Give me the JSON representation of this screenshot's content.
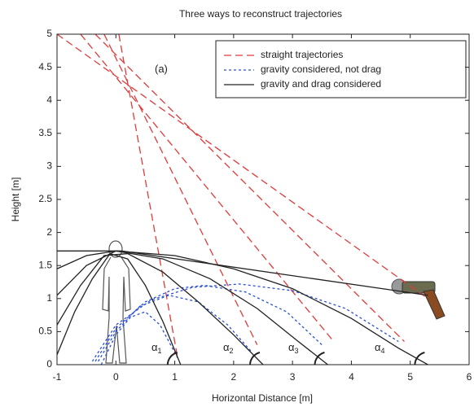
{
  "chart_data": {
    "type": "line",
    "title": "Three ways to reconstruct trajectories",
    "xlabel": "Horizontal Distance [m]",
    "ylabel": "Height [m]",
    "xlim": [
      -1,
      6
    ],
    "ylim": [
      0,
      5
    ],
    "xticks": [
      -1,
      0,
      1,
      2,
      3,
      4,
      5,
      6
    ],
    "yticks": [
      0,
      0.5,
      1,
      1.5,
      2,
      2.5,
      3,
      3.5,
      4,
      4.5,
      5
    ],
    "grid": false,
    "legend": "upper right",
    "annotations": [
      {
        "text": "(a)"
      },
      {
        "text": "α",
        "sub": "1"
      },
      {
        "text": "α",
        "sub": "2"
      },
      {
        "text": "α",
        "sub": "3"
      },
      {
        "text": "α",
        "sub": "4"
      }
    ],
    "series": [
      {
        "name": "straight trajectories",
        "color": "#e03a3a",
        "style": "dashed",
        "x": [
          -1,
          5.3,
          null,
          -0.6,
          3.7,
          null,
          -0.35,
          4.9,
          null,
          -0.2,
          2.4,
          null,
          0.05,
          1.05
        ],
        "values": [
          5,
          1.0,
          null,
          5,
          0.35,
          null,
          5,
          0.35,
          null,
          5,
          0.3,
          null,
          5,
          0.1
        ]
      },
      {
        "name": "gravity considered, not drag",
        "color": "#2a4fd8",
        "style": "dotted",
        "x": [
          -0.25,
          0,
          0.25,
          0.5,
          0.75,
          1.05,
          null,
          -0.3,
          0,
          0.4,
          0.9,
          1.4,
          1.9,
          2.3,
          null,
          -0.35,
          0,
          0.5,
          1.0,
          1.5,
          2.2,
          2.9,
          3.5,
          null,
          -0.4,
          0,
          0.6,
          1.3,
          2.1,
          3.0,
          3.9,
          4.8
        ],
        "values": [
          0,
          0.45,
          0.72,
          0.8,
          0.6,
          0.1,
          null,
          0.05,
          0.5,
          0.88,
          1.05,
          0.95,
          0.6,
          0.2,
          null,
          0.05,
          0.55,
          0.95,
          1.15,
          1.2,
          1.1,
          0.8,
          0.3,
          null,
          0.05,
          0.6,
          0.98,
          1.17,
          1.22,
          1.12,
          0.85,
          0.35
        ]
      },
      {
        "name": "gravity and drag considered",
        "color": "#222222",
        "style": "solid",
        "x": [
          -1,
          -0.7,
          -0.4,
          -0.1,
          0.2,
          0.5,
          0.8,
          1.1,
          null,
          -1,
          -0.6,
          -0.2,
          0.2,
          0.8,
          1.4,
          2.0,
          2.5,
          null,
          -1,
          -0.5,
          0,
          0.8,
          1.6,
          2.4,
          3.1,
          3.6,
          null,
          -1,
          -0.5,
          0,
          1.0,
          2.0,
          3.0,
          4.0,
          4.8,
          5.3,
          null,
          -1,
          0.1,
          5.3
        ],
        "values": [
          0.15,
          0.8,
          1.3,
          1.68,
          1.6,
          1.2,
          0.65,
          0,
          null,
          0.6,
          1.2,
          1.65,
          1.68,
          1.4,
          0.95,
          0.45,
          0,
          null,
          1.05,
          1.5,
          1.72,
          1.6,
          1.3,
          0.85,
          0.35,
          0,
          null,
          1.45,
          1.65,
          1.72,
          1.65,
          1.45,
          1.15,
          0.7,
          0.25,
          0,
          null,
          1.72,
          1.72,
          1.05
        ]
      }
    ]
  }
}
